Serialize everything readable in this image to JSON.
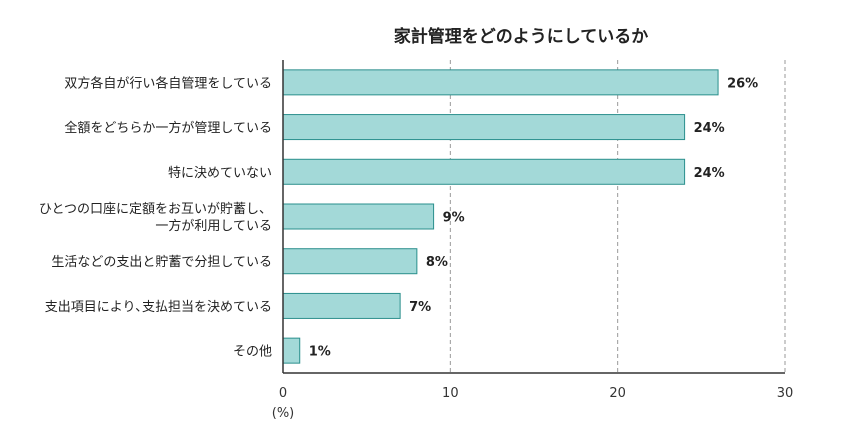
{
  "chart_data": {
    "type": "bar",
    "orientation": "horizontal",
    "title": "家計管理をどのようにしているか",
    "categories": [
      [
        "双方各自が行い各自管理をしている"
      ],
      [
        "全額をどちらか一方が管理している"
      ],
      [
        "特に決めていない"
      ],
      [
        "ひとつの口座に定額をお互いが貯蓄し、",
        "一方が利用している"
      ],
      [
        "生活などの支出と貯蓄で分担している"
      ],
      [
        "支出項目により､支払担当を決めている"
      ],
      [
        "その他"
      ]
    ],
    "values": [
      26,
      24,
      24,
      9,
      8,
      7,
      1
    ],
    "data_labels": [
      "26%",
      "24%",
      "24%",
      "9%",
      "8%",
      "7%",
      "1%"
    ],
    "xlim": [
      0,
      30
    ],
    "xticks": [
      0,
      10,
      20,
      30
    ],
    "tick_labels": [
      "0",
      "10",
      "20",
      "30"
    ],
    "xunit": "(%)",
    "grid": "vertical dashed",
    "colors": {
      "bar_fill": "#a3d9d8",
      "bar_stroke": "#2a8f8c",
      "grid": "#999999",
      "axis": "#333333"
    }
  }
}
